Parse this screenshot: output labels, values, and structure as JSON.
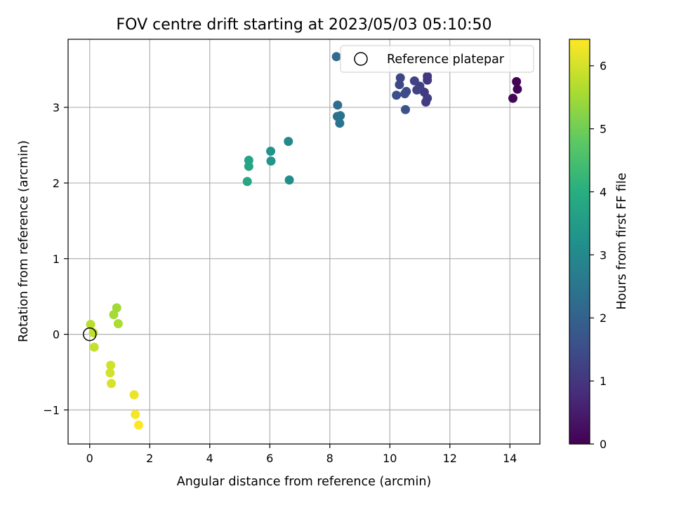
{
  "chart_data": {
    "type": "scatter",
    "title": "FOV centre drift starting at 2023/05/03 05:10:50",
    "xlabel": "Angular distance from reference (arcmin)",
    "ylabel": "Rotation from reference (arcmin)",
    "xlim": [
      -0.72,
      15.0
    ],
    "ylim": [
      -1.45,
      3.9
    ],
    "xticks": [
      0,
      2,
      4,
      6,
      8,
      10,
      12,
      14
    ],
    "xtick_labels": [
      "0",
      "2",
      "4",
      "6",
      "8",
      "10",
      "12",
      "14"
    ],
    "yticks": [
      -1,
      0,
      1,
      2,
      3
    ],
    "ytick_labels": [
      "−1",
      "0",
      "1",
      "2",
      "3"
    ],
    "grid": true,
    "legend": {
      "placement": "top-right",
      "entries": [
        "Reference platepar"
      ]
    },
    "reference_point": {
      "x": 0,
      "y": 0,
      "label": "Reference platepar"
    },
    "colorbar": {
      "label": "Hours from first FF file",
      "colormap": "viridis",
      "range": [
        0,
        6.42
      ],
      "ticks": [
        0,
        1,
        2,
        3,
        4,
        5,
        6
      ],
      "tick_labels": [
        "0",
        "1",
        "2",
        "3",
        "4",
        "5",
        "6"
      ]
    },
    "points": [
      {
        "x": 14.22,
        "y": 3.34,
        "hours": 0.0
      },
      {
        "x": 14.25,
        "y": 3.24,
        "hours": 0.05
      },
      {
        "x": 14.1,
        "y": 3.12,
        "hours": 0.1
      },
      {
        "x": 11.25,
        "y": 3.41,
        "hours": 1.0
      },
      {
        "x": 11.25,
        "y": 3.36,
        "hours": 1.05
      },
      {
        "x": 11.15,
        "y": 3.2,
        "hours": 1.1
      },
      {
        "x": 11.25,
        "y": 3.12,
        "hours": 1.12
      },
      {
        "x": 11.2,
        "y": 3.07,
        "hours": 1.15
      },
      {
        "x": 11.0,
        "y": 3.28,
        "hours": 1.2
      },
      {
        "x": 10.9,
        "y": 3.23,
        "hours": 1.25
      },
      {
        "x": 10.82,
        "y": 3.35,
        "hours": 1.3
      },
      {
        "x": 10.35,
        "y": 3.39,
        "hours": 1.35
      },
      {
        "x": 10.32,
        "y": 3.3,
        "hours": 1.4
      },
      {
        "x": 10.55,
        "y": 3.21,
        "hours": 1.45
      },
      {
        "x": 10.5,
        "y": 3.18,
        "hours": 1.5
      },
      {
        "x": 10.22,
        "y": 3.16,
        "hours": 1.55
      },
      {
        "x": 10.52,
        "y": 2.97,
        "hours": 1.6
      },
      {
        "x": 8.22,
        "y": 3.67,
        "hours": 2.2
      },
      {
        "x": 8.26,
        "y": 3.03,
        "hours": 2.3
      },
      {
        "x": 8.25,
        "y": 2.88,
        "hours": 2.35
      },
      {
        "x": 8.35,
        "y": 2.89,
        "hours": 2.4
      },
      {
        "x": 8.33,
        "y": 2.79,
        "hours": 2.45
      },
      {
        "x": 6.62,
        "y": 2.55,
        "hours": 3.0
      },
      {
        "x": 6.65,
        "y": 2.04,
        "hours": 3.1
      },
      {
        "x": 6.03,
        "y": 2.42,
        "hours": 3.3
      },
      {
        "x": 6.04,
        "y": 2.29,
        "hours": 3.35
      },
      {
        "x": 5.3,
        "y": 2.3,
        "hours": 3.7
      },
      {
        "x": 5.3,
        "y": 2.22,
        "hours": 3.75
      },
      {
        "x": 5.25,
        "y": 2.02,
        "hours": 3.8
      },
      {
        "x": 0.9,
        "y": 0.35,
        "hours": 5.5
      },
      {
        "x": 0.8,
        "y": 0.26,
        "hours": 5.55
      },
      {
        "x": 0.95,
        "y": 0.14,
        "hours": 5.6
      },
      {
        "x": 0.03,
        "y": 0.13,
        "hours": 5.75
      },
      {
        "x": 0.12,
        "y": 0.02,
        "hours": 5.8
      },
      {
        "x": 0.15,
        "y": -0.17,
        "hours": 5.85
      },
      {
        "x": 0.7,
        "y": -0.41,
        "hours": 5.95
      },
      {
        "x": 0.68,
        "y": -0.51,
        "hours": 6.0
      },
      {
        "x": 0.72,
        "y": -0.65,
        "hours": 6.05
      },
      {
        "x": 1.48,
        "y": -0.8,
        "hours": 6.25
      },
      {
        "x": 1.52,
        "y": -1.06,
        "hours": 6.35
      },
      {
        "x": 1.63,
        "y": -1.2,
        "hours": 6.42
      }
    ]
  }
}
